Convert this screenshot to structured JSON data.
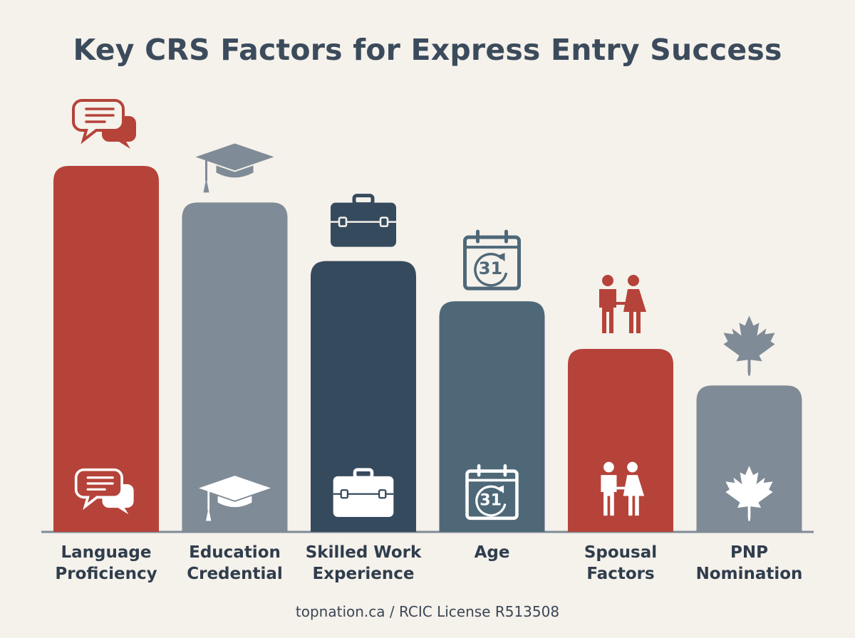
{
  "chart_data": {
    "type": "bar",
    "title": "Key CRS Factors for Express Entry Success",
    "categories": [
      "Language Proficiency",
      "Education Credential",
      "Skilled Work Experience",
      "Age",
      "Spousal Factors",
      "PNP Nomination"
    ],
    "label_lines": [
      [
        "Language",
        "Proficiency"
      ],
      [
        "Education",
        "Credential"
      ],
      [
        "Skilled Work",
        "Experience"
      ],
      [
        "Age"
      ],
      [
        "Spousal",
        "Factors"
      ],
      [
        "PNP",
        "Nomination"
      ]
    ],
    "values": [
      100,
      90,
      74,
      63,
      50,
      40
    ],
    "ylim": [
      0,
      100
    ],
    "grid": false,
    "legend": "none",
    "bar_colors": [
      "#b5433a",
      "#7f8b96",
      "#364a5e",
      "#4e6878",
      "#b5433a",
      "#7f8b96"
    ],
    "icons": [
      "speech-bubbles-icon",
      "graduation-cap-icon",
      "briefcase-icon",
      "calendar-icon",
      "couple-icon",
      "maple-leaf-icon"
    ],
    "calendar_day": "31"
  },
  "footer": "topnation.ca / RCIC License R513508"
}
